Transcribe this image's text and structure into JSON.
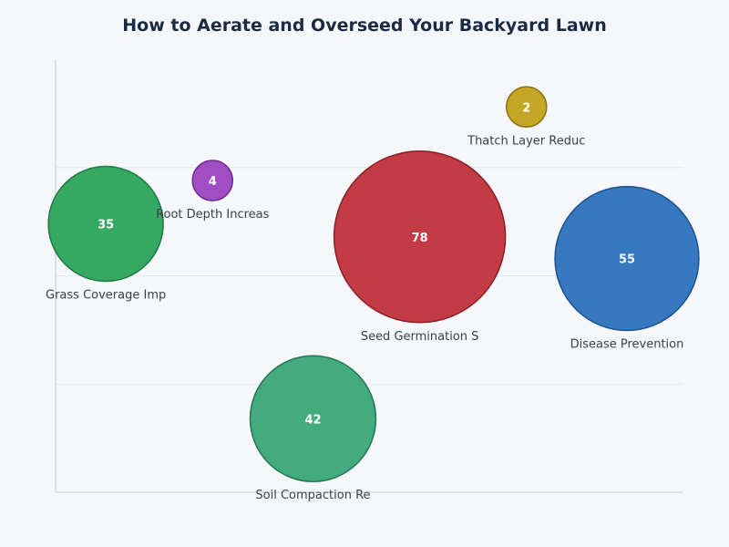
{
  "chart_data": {
    "type": "bubble",
    "title": "How to Aerate and Overseed Your Backyard Lawn",
    "xlabel": "",
    "ylabel": "",
    "xlim": [
      0,
      100
    ],
    "ylim": [
      0,
      100
    ],
    "grid": true,
    "points": [
      {
        "label": "Grass Coverage Imp",
        "x": 8,
        "y": 62,
        "value": 35,
        "color": "#2aa35a",
        "stroke": "#1f7a43"
      },
      {
        "label": "Root Depth Increas",
        "x": 25,
        "y": 72,
        "value": 4,
        "color": "#9b44bf",
        "stroke": "#6f2c8e"
      },
      {
        "label": "Thatch Layer Reduc",
        "x": 75,
        "y": 89,
        "value": 2,
        "color": "#c2a21b",
        "stroke": "#8d7410"
      },
      {
        "label": "Seed Germination S",
        "x": 58,
        "y": 59,
        "value": 78,
        "color": "#c0313b",
        "stroke": "#8c1e26"
      },
      {
        "label": "Disease Prevention",
        "x": 91,
        "y": 54,
        "value": 55,
        "color": "#2c72bd",
        "stroke": "#1d5290"
      },
      {
        "label": "Soil Compaction Re",
        "x": 41,
        "y": 17,
        "value": 42,
        "color": "#3aa675",
        "stroke": "#237853"
      }
    ]
  }
}
